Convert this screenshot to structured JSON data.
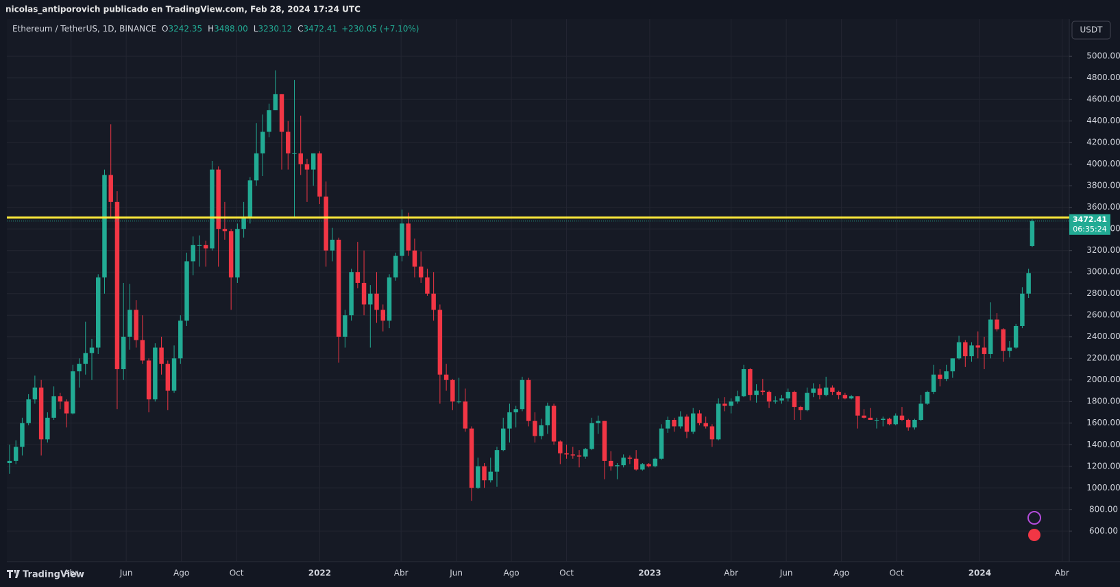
{
  "published_by": "nicolas_antiporovich publicado en TradingView.com, Feb 28, 2024 17:24 UTC",
  "brand": "TradingView",
  "legend": {
    "symbol": "Ethereum / TetherUS, 1D, BINANCE",
    "fields": [
      {
        "key": "O",
        "value": "3242.35"
      },
      {
        "key": "H",
        "value": "3488.00"
      },
      {
        "key": "L",
        "value": "3230.12"
      },
      {
        "key": "C",
        "value": "3472.41"
      }
    ],
    "change": "+230.05 (+7.10%)"
  },
  "currency": "USDT",
  "countdown": "06:35:24",
  "chart_data": {
    "type": "candlestick",
    "up_color": "#22ab94",
    "down_color": "#f23645",
    "grid": true,
    "horizontal_line": {
      "value": 3505,
      "color": "#ffeb3b"
    },
    "xlim": [
      19,
      1194
    ],
    "xticks": [
      {
        "value": 90,
        "label": "Abr"
      },
      {
        "value": 151,
        "label": "Jun"
      },
      {
        "value": 212,
        "label": "Ago"
      },
      {
        "value": 273,
        "label": "Oct"
      },
      {
        "value": 365,
        "label": "2022"
      },
      {
        "value": 455,
        "label": "Abr"
      },
      {
        "value": 516,
        "label": "Jun"
      },
      {
        "value": 577,
        "label": "Ago"
      },
      {
        "value": 638,
        "label": "Oct"
      },
      {
        "value": 730,
        "label": "2023"
      },
      {
        "value": 820,
        "label": "Abr"
      },
      {
        "value": 881,
        "label": "Jun"
      },
      {
        "value": 942,
        "label": "Ago"
      },
      {
        "value": 1003,
        "label": "Oct"
      },
      {
        "value": 1095,
        "label": "2024"
      },
      {
        "value": 1186,
        "label": "Abr"
      }
    ],
    "ylim": [
      316,
      5344
    ],
    "yticks": [
      {
        "value": 600,
        "label": "600.00"
      },
      {
        "value": 800,
        "label": "800.00"
      },
      {
        "value": 1000,
        "label": "1000.00"
      },
      {
        "value": 1200,
        "label": "1200.00"
      },
      {
        "value": 1400,
        "label": "1400.00"
      },
      {
        "value": 1600,
        "label": "1600.00"
      },
      {
        "value": 1800,
        "label": "1800.00"
      },
      {
        "value": 2000,
        "label": "2000.00"
      },
      {
        "value": 2200,
        "label": "2200.00"
      },
      {
        "value": 2400,
        "label": "2400.00"
      },
      {
        "value": 2600,
        "label": "2600.00"
      },
      {
        "value": 2800,
        "label": "2800.00"
      },
      {
        "value": 3000,
        "label": "3000.00"
      },
      {
        "value": 3200,
        "label": "3200.00"
      },
      {
        "value": 3400,
        "label": "3400.00"
      },
      {
        "value": 3600,
        "label": "3600.00"
      },
      {
        "value": 3800,
        "label": "3800.00"
      },
      {
        "value": 4000,
        "label": "4000.00"
      },
      {
        "value": 4200,
        "label": "4200.00"
      },
      {
        "value": 4400,
        "label": "4400.00"
      },
      {
        "value": 4600,
        "label": "4600.00"
      },
      {
        "value": 4800,
        "label": "4800.00"
      },
      {
        "value": 5000,
        "label": "5000.00"
      }
    ],
    "x": [
      22,
      29,
      36,
      43,
      50,
      57,
      64,
      71,
      78,
      85,
      92,
      99,
      106,
      113,
      120,
      127,
      134,
      141,
      148,
      155,
      162,
      169,
      176,
      183,
      190,
      197,
      204,
      211,
      218,
      225,
      232,
      239,
      246,
      253,
      260,
      267,
      274,
      281,
      288,
      295,
      302,
      309,
      316,
      323,
      330,
      337,
      344,
      351,
      358,
      365,
      372,
      379,
      386,
      393,
      400,
      407,
      414,
      421,
      428,
      435,
      442,
      449,
      456,
      463,
      470,
      477,
      484,
      491,
      498,
      505,
      512,
      519,
      526,
      533,
      540,
      547,
      554,
      561,
      568,
      575,
      582,
      589,
      596,
      603,
      610,
      617,
      624,
      631,
      638,
      645,
      652,
      659,
      666,
      673,
      680,
      687,
      694,
      701,
      708,
      715,
      722,
      729,
      736,
      743,
      750,
      757,
      764,
      771,
      778,
      785,
      792,
      799,
      806,
      813,
      820,
      827,
      834,
      841,
      848,
      855,
      862,
      869,
      876,
      883,
      890,
      897,
      904,
      911,
      918,
      925,
      932,
      939,
      946,
      953,
      960,
      967,
      974,
      981,
      988,
      995,
      1002,
      1009,
      1016,
      1023,
      1030,
      1037,
      1044,
      1051,
      1058,
      1065,
      1072,
      1079,
      1086,
      1093,
      1100,
      1107,
      1114,
      1121,
      1128,
      1135,
      1142,
      1149,
      1153
    ],
    "open": [
      1230,
      1250,
      1380,
      1600,
      1820,
      1930,
      1450,
      1650,
      1850,
      1800,
      1690,
      2080,
      2150,
      2250,
      2300,
      2950,
      3900,
      3650,
      2100,
      2400,
      2650,
      2370,
      2180,
      1820,
      2300,
      2150,
      1900,
      2200,
      2550,
      3100,
      3250,
      3250,
      3220,
      3950,
      3400,
      3380,
      2950,
      3400,
      3500,
      3850,
      4100,
      4300,
      4500,
      4650,
      4300,
      4100,
      4100,
      4000,
      3950,
      4100,
      3700,
      3200,
      3300,
      2400,
      2600,
      3000,
      2900,
      2700,
      2800,
      2650,
      2550,
      2950,
      3150,
      3450,
      3200,
      3050,
      2950,
      2800,
      2650,
      2050,
      2000,
      1800,
      1800,
      1550,
      1000,
      1200,
      1070,
      1150,
      1350,
      1550,
      1700,
      1730,
      2000,
      1620,
      1480,
      1580,
      1760,
      1430,
      1320,
      1310,
      1300,
      1290,
      1360,
      1600,
      1620,
      1250,
      1200,
      1210,
      1280,
      1270,
      1170,
      1220,
      1200,
      1270,
      1550,
      1630,
      1570,
      1660,
      1520,
      1690,
      1600,
      1570,
      1450,
      1780,
      1760,
      1800,
      1850,
      2100,
      1860,
      1900,
      1890,
      1800,
      1810,
      1830,
      1890,
      1750,
      1720,
      1880,
      1920,
      1860,
      1930,
      1890,
      1860,
      1830,
      1850,
      1670,
      1650,
      1630,
      1630,
      1640,
      1590,
      1670,
      1630,
      1560,
      1630,
      1780,
      1890,
      2050,
      2010,
      2080,
      2200,
      2350,
      2220,
      2320,
      2300,
      2240,
      2560,
      2470,
      2270,
      2300,
      2500,
      2800,
      3242.35
    ],
    "high": [
      1400,
      1440,
      1650,
      1870,
      2040,
      2000,
      1700,
      1940,
      1880,
      1820,
      2140,
      2200,
      2540,
      2380,
      2980,
      3950,
      4370,
      3750,
      2900,
      2890,
      2740,
      2600,
      2200,
      2340,
      2400,
      2180,
      2320,
      2600,
      3180,
      3330,
      3340,
      3290,
      4030,
      3980,
      3650,
      3400,
      3450,
      3650,
      3880,
      4380,
      4460,
      4560,
      4870,
      4650,
      4400,
      4780,
      4450,
      4050,
      4100,
      4120,
      3840,
      3410,
      3320,
      2650,
      3030,
      3280,
      3200,
      2880,
      3000,
      2700,
      2980,
      3180,
      3580,
      3550,
      3310,
      3190,
      3030,
      3000,
      2700,
      2150,
      2010,
      2020,
      1920,
      1570,
      1280,
      1230,
      1280,
      1380,
      1650,
      1780,
      1760,
      2030,
      2020,
      1700,
      1640,
      1790,
      1780,
      1440,
      1400,
      1380,
      1350,
      1370,
      1650,
      1670,
      1620,
      1340,
      1230,
      1310,
      1300,
      1350,
      1230,
      1230,
      1280,
      1590,
      1660,
      1650,
      1710,
      1680,
      1740,
      1720,
      1660,
      1590,
      1830,
      1840,
      1830,
      1900,
      2140,
      2110,
      1960,
      2010,
      1900,
      1850,
      1860,
      1920,
      1900,
      1760,
      1930,
      1970,
      1960,
      2030,
      1950,
      1900,
      1880,
      1860,
      1850,
      1730,
      1740,
      1650,
      1660,
      1650,
      1690,
      1750,
      1640,
      1640,
      1860,
      1900,
      2140,
      2100,
      2140,
      2200,
      2410,
      2370,
      2350,
      2450,
      2400,
      2720,
      2620,
      2480,
      2360,
      2520,
      2860,
      3030,
      3488
    ],
    "low": [
      1130,
      1220,
      1300,
      1580,
      1780,
      1300,
      1420,
      1630,
      1730,
      1560,
      1680,
      1930,
      2050,
      2000,
      2240,
      2800,
      3500,
      1730,
      2000,
      2280,
      2300,
      2150,
      1700,
      1800,
      2050,
      1720,
      1880,
      2150,
      2500,
      2970,
      3050,
      3050,
      3200,
      3050,
      3300,
      2650,
      2900,
      3320,
      3450,
      3800,
      3890,
      4250,
      4500,
      3950,
      3950,
      3500,
      3900,
      3650,
      3800,
      3630,
      3050,
      3100,
      2160,
      2300,
      2550,
      2850,
      2600,
      2300,
      2530,
      2450,
      2480,
      2920,
      3100,
      3150,
      2950,
      2900,
      2780,
      2550,
      1780,
      1900,
      1720,
      1780,
      1520,
      880,
      990,
      1000,
      1050,
      1010,
      1340,
      1420,
      1560,
      1710,
      1570,
      1420,
      1450,
      1500,
      1400,
      1220,
      1270,
      1270,
      1190,
      1270,
      1350,
      1500,
      1080,
      1160,
      1080,
      1190,
      1220,
      1160,
      1160,
      1190,
      1190,
      1260,
      1510,
      1520,
      1550,
      1460,
      1500,
      1580,
      1550,
      1380,
      1440,
      1710,
      1690,
      1780,
      1840,
      1810,
      1790,
      1860,
      1740,
      1780,
      1780,
      1800,
      1630,
      1630,
      1710,
      1840,
      1820,
      1850,
      1860,
      1820,
      1820,
      1820,
      1550,
      1640,
      1630,
      1550,
      1570,
      1580,
      1580,
      1620,
      1530,
      1540,
      1620,
      1770,
      1870,
      1940,
      1990,
      2020,
      2190,
      2120,
      2170,
      2200,
      2100,
      2200,
      2450,
      2170,
      2210,
      2290,
      2480,
      2760,
      3230.12
    ],
    "close": [
      1250,
      1380,
      1600,
      1820,
      1930,
      1450,
      1650,
      1850,
      1800,
      1690,
      2080,
      2150,
      2250,
      2300,
      2950,
      3900,
      3650,
      2100,
      2400,
      2650,
      2370,
      2180,
      1820,
      2300,
      2150,
      1900,
      2200,
      2550,
      3100,
      3250,
      3250,
      3220,
      3950,
      3400,
      3380,
      2950,
      3400,
      3500,
      3850,
      4100,
      4300,
      4500,
      4650,
      4300,
      4100,
      4100,
      4000,
      3950,
      4100,
      3700,
      3200,
      3300,
      2400,
      2600,
      3000,
      2900,
      2700,
      2800,
      2650,
      2550,
      2950,
      3150,
      3450,
      3200,
      3050,
      2950,
      2800,
      2650,
      2050,
      2000,
      1800,
      1800,
      1550,
      1000,
      1200,
      1070,
      1150,
      1350,
      1550,
      1700,
      1730,
      2000,
      1620,
      1480,
      1580,
      1760,
      1430,
      1320,
      1310,
      1300,
      1290,
      1360,
      1600,
      1620,
      1250,
      1200,
      1210,
      1280,
      1270,
      1170,
      1220,
      1200,
      1270,
      1550,
      1630,
      1570,
      1660,
      1520,
      1690,
      1600,
      1570,
      1450,
      1780,
      1760,
      1800,
      1850,
      2100,
      1860,
      1900,
      1890,
      1800,
      1810,
      1830,
      1890,
      1750,
      1720,
      1880,
      1920,
      1860,
      1930,
      1890,
      1860,
      1830,
      1850,
      1670,
      1650,
      1630,
      1630,
      1640,
      1590,
      1670,
      1630,
      1560,
      1630,
      1780,
      1890,
      2050,
      2010,
      2080,
      2200,
      2350,
      2220,
      2320,
      2300,
      2240,
      2560,
      2470,
      2270,
      2300,
      2500,
      2800,
      2990,
      3472.41
    ]
  }
}
